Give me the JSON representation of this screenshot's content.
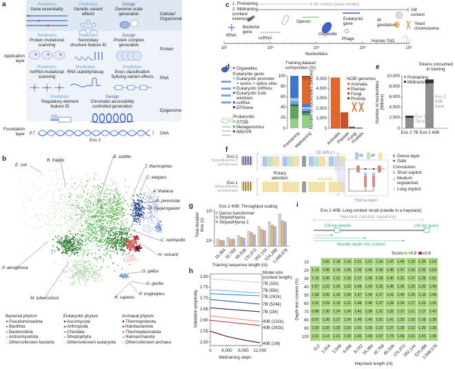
{
  "panel_labels": [
    "a",
    "b",
    "c",
    "d",
    "e",
    "f",
    "g",
    "h",
    "i"
  ],
  "a": {
    "rows": [
      {
        "level": "Cellular/\nOrganismal",
        "cells": [
          {
            "type": "Prediction",
            "title": "Gene essentiality",
            "icon": "gene-knockout"
          },
          {
            "type": "Prediction",
            "title": "Genetic variant\neffects",
            "icon": "people"
          },
          {
            "type": "Design",
            "title": "Genome-scale\ngeneration",
            "icon": "cell-genome"
          }
        ]
      },
      {
        "level": "Protein",
        "cells": [
          {
            "type": "Prediction",
            "title": "Protein mutational\nscanning",
            "icon": "protein-mutation"
          },
          {
            "type": "Prediction",
            "title": "Secondary\nstructure feature ID",
            "icon": "helix-sheet"
          },
          {
            "type": "Design",
            "title": "Protein complex\ngeneration",
            "icon": "protein-complex"
          }
        ]
      },
      {
        "level": "RNA",
        "cells": [
          {
            "type": "Prediction",
            "title": "ncRNA mutational\nscanning",
            "icon": "rna-mutation"
          },
          {
            "type": "Prediction",
            "title": "RNA stability/decay",
            "icon": "rna-hairpin"
          },
          {
            "type": "Prediction",
            "title": "Exon classification\nSplicing variant effects",
            "icon": "exon-splice"
          }
        ]
      },
      {
        "level": "Epigenome",
        "cells": [
          {
            "type": "Prediction",
            "title": "Regulatory element\nfeature ID",
            "icon": "regulatory-element"
          },
          {
            "type": "Design",
            "title": "Chromatin accessibility\ncontrolled generation",
            "icon": "chromatin"
          }
        ]
      }
    ],
    "application_layer": "Application\nlayer",
    "foundation_layer": "Foundation\nlayer",
    "p_open": "p (",
    "p_close": ")",
    "model": "Evo 2",
    "dna": "DNA",
    "colors": {
      "prediction": "#5b9fe0",
      "design": "#4a5cae",
      "background": "#eef3fa"
    }
  },
  "b": {
    "species": [
      "E. coli",
      "B. fragilis",
      "B. subtilis",
      "T. thermophila",
      "C. elegans",
      "A. thaliana",
      "S. cerevisiae",
      "D. melanogaster",
      "C. reinhardtii",
      "H. volcanii",
      "G. gallus",
      "G. gorilla",
      "P. troglodytes",
      "H. sapiens",
      "P. aeruginosa",
      "M. tuberculosis"
    ],
    "legend": [
      {
        "title": "Bacterial phylum",
        "items": [
          {
            "name": "Pseudomonadota",
            "color": "#2e7d32"
          },
          {
            "name": "Bacillota",
            "color": "#4caf50"
          },
          {
            "name": "Bacteroidota",
            "color": "#7cc46a"
          },
          {
            "name": "Actinomycetota",
            "color": "#a8d5a0"
          },
          {
            "name": "Other/unknown bacteria",
            "color": "#d8ecd3"
          }
        ]
      },
      {
        "title": "Eukaryotic phylum",
        "items": [
          {
            "name": "Ascomycota",
            "color": "#1f3e8c"
          },
          {
            "name": "Arthropoda",
            "color": "#3c64c8"
          },
          {
            "name": "Chordata",
            "color": "#7a98d8"
          },
          {
            "name": "Streptophyta",
            "color": "#a8bce8"
          },
          {
            "name": "Other/unknown eukaryota",
            "color": "#dbe3f4"
          }
        ]
      },
      {
        "title": "Archaeal phylum",
        "items": [
          {
            "name": "Thermoproteota",
            "color": "#6b1024"
          },
          {
            "name": "Halobacteriota",
            "color": "#c2283a"
          },
          {
            "name": "Thermoplasmatota",
            "color": "#e05a5a"
          },
          {
            "name": "Nanoarchaeota",
            "color": "#f09a9a"
          },
          {
            "name": "Other/unknown archaea",
            "color": "#f7cfcf"
          }
        ]
      }
    ]
  },
  "c": {
    "pretraining": "1. Pretraining",
    "midtraining": "2. Midtraining\n(context\nextension)",
    "base_context": "8k context (base model)",
    "long_context": "1M\ncontext",
    "xlabel": "Nucleotides",
    "ticks": [
      "10²",
      "10³",
      "10⁴",
      "10⁵",
      "10⁶"
    ],
    "items": [
      "tRNA",
      "Bacterial\ngene",
      "ncRNA",
      "Operon",
      "Organelle",
      "Eukaryotic\ngene",
      "Phage",
      "M.\ngenitalium",
      "Human TAD",
      "Yeast\nchromosome"
    ]
  },
  "d": {
    "legend": {
      "organelles": "Organelles",
      "eukaryotic_header": "Eukaryotic genic",
      "eukaryotic": [
        "Eukaryotic promoter\n+ exons + splice sites",
        "Eukaryotic mRNAs",
        "Eukaryotic 5-kb\nwindows",
        "ncRNA",
        "EPDnew"
      ],
      "prokaryotic_header": "Prokaryotic",
      "prokaryotic": [
        "GTDB",
        "Metagenomics",
        "IMG/VR"
      ],
      "ncbi_header": "NCBI genomes"
    }
  },
  "f": {
    "evo2": "Evo 2",
    "evo2_arch": "StripedHyena 2\narchitecture",
    "evo1": "Evo 1",
    "evo1_arch": "StripedHyena\narchitecture",
    "evo2_pattern": "SE-MR-LI",
    "evo1_pattern": "LI-LI-LI",
    "rotary": "Rotary\nattention",
    "or": "or",
    "hyena_layer": "Hyena layer",
    "legend": {
      "dense": "Dense layer",
      "gate": "Gate",
      "convolution": "Convolution",
      "short": "Short explicit",
      "medium": "Medium\nregularized",
      "long": "Long implicit"
    },
    "colors": {
      "short": "#a9c8ef",
      "medium": "#bfe3c8",
      "long": "#f6e29a",
      "dense": "#d98a8a",
      "attention": "#9a9a9a",
      "evo2": "#8a7fc0",
      "evo1": "#e8b94a"
    }
  },
  "i_diagram": {
    "haystack": "Haystack (random sequence)",
    "needle": "100 bp needle",
    "query": "100 bp query",
    "depth": "Needle depth into context",
    "score_label": "Score:",
    "score_high": ">0.8",
    "score_low": "≤0.8"
  },
  "chart_data": [
    {
      "id": "composition",
      "type": "bar",
      "stacked": true,
      "title": "Training dataset composition (%)",
      "categories": [
        "Pretraining",
        "Midtraining"
      ],
      "ylim": [
        0,
        100
      ],
      "yticks": [
        "0",
        "20",
        "40",
        "60",
        "80",
        "100"
      ],
      "series": [
        {
          "name": "GTDB",
          "values": [
            18,
            24
          ],
          "color": "#93cf84"
        },
        {
          "name": "Metagenomics",
          "values": [
            24,
            4
          ],
          "color": "#5aa65a"
        },
        {
          "name": "IMG/VR",
          "values": [
            2,
            2
          ],
          "color": "#2f6f3a"
        },
        {
          "name": "EPDnew",
          "values": [
            1,
            1
          ],
          "color": "#1e3a78"
        },
        {
          "name": "ncRNA",
          "values": [
            1,
            2
          ],
          "color": "#2f5fb8"
        },
        {
          "name": "Eukaryotic mRNAs",
          "values": [
            6,
            4
          ],
          "color": "#6f9ee0"
        },
        {
          "name": "Eukaryotic promoter + exons + splice sites",
          "values": [
            5,
            3
          ],
          "color": "#a9c6ef"
        },
        {
          "name": "Organelles",
          "values": [
            0.5,
            0.5
          ],
          "color": "#8a8a8a"
        },
        {
          "name": "Eukaryotic 5-kb windows",
          "values": [
            42.5,
            5.5
          ],
          "color": "#3f78c8"
        },
        {
          "name": "Animalia",
          "values": [
            0,
            45
          ],
          "color": "#e0662a"
        },
        {
          "name": "Plantae",
          "values": [
            0,
            7
          ],
          "color": "#c9522a"
        },
        {
          "name": "Fungi",
          "values": [
            0,
            1.5
          ],
          "color": "#a8401f"
        },
        {
          "name": "Protista",
          "values": [
            0,
            0.5
          ],
          "color": "#6e2a14"
        }
      ]
    },
    {
      "id": "ncbi",
      "type": "bar",
      "categories": [
        "Animalia",
        "Plantae",
        "Fungi",
        "Protista"
      ],
      "values": [
        5100,
        1600,
        150,
        50
      ],
      "colors": [
        "#e0662a",
        "#c9522a",
        "#a8401f",
        "#6e2a14"
      ],
      "ylabel": "Number of nucleotides (billions)",
      "ylim": [
        0,
        5300
      ],
      "yticks": [
        "0",
        "1,000",
        "2,000",
        "3,000",
        "4,000",
        "5,000"
      ]
    },
    {
      "id": "tokens",
      "type": "bar",
      "stacked": true,
      "title": "Tokens consumed\nin training",
      "categories": [
        "Evo 2 7B",
        "Evo 2 40B"
      ],
      "series": [
        {
          "name": "Pretraining",
          "values": [
            2000,
            8600
          ],
          "color": "#8e8e8e"
        },
        {
          "name": "Midtraining",
          "values": [
            400,
            700
          ],
          "color": "#2b2b2b"
        }
      ],
      "annotations": [
        "Evo 2\n7B base",
        "Evo 2\n40B\nbase"
      ],
      "ylabel": "Number of nucleotides\n(billions)",
      "ylim": [
        0,
        10000
      ],
      "yticks": [
        "0",
        "2,000",
        "4,000",
        "6,000",
        "8,000",
        "10,000"
      ]
    },
    {
      "id": "throughput",
      "type": "bar",
      "log_y": true,
      "title": "Evo 2 40B: Throughput scaling",
      "categories": [
        "16,384",
        "32,768",
        "65,536",
        "131,072",
        "262,144",
        "524,288",
        "1,048,576"
      ],
      "series": [
        {
          "name": "Dense transformer",
          "values": [
            12,
            14,
            16,
            22,
            32,
            47,
            85
          ],
          "color": "#d4d4d4"
        },
        {
          "name": "StripedHyena",
          "values": [
            11,
            12,
            14,
            20,
            26,
            36,
            50
          ],
          "color": "#e8b96a"
        },
        {
          "name": "StripedHyena 2",
          "values": [
            11,
            12,
            13,
            17,
            23,
            32,
            45
          ],
          "color": "#b7b1e0"
        }
      ],
      "xlabel": "Training sequence length (nt)",
      "ylabel": "Total iteration\ntime (s)",
      "yticks": [
        "10¹",
        "10²"
      ]
    },
    {
      "id": "perplexity",
      "type": "line",
      "x": [
        0,
        4000,
        8000,
        12000
      ],
      "series": [
        {
          "name": "7B (32k)",
          "values": [
            2.79,
            2.784,
            2.778,
            2.772
          ],
          "color": "#b9d3ee"
        },
        {
          "name": "7B (65k)",
          "values": [
            2.74,
            2.735,
            2.729,
            2.724
          ],
          "color": "#7fb0e4"
        },
        {
          "name": "7B (262k)",
          "values": [
            2.722,
            2.718,
            2.715,
            2.712
          ],
          "color": "#3f86cf"
        },
        {
          "name": "7B (524k)",
          "values": [
            2.695,
            2.688,
            2.681,
            2.674
          ],
          "color": "#2d5aa8"
        },
        {
          "name": "7B (1M)",
          "values": [
            2.657,
            2.651,
            2.645,
            2.639
          ],
          "color": "#17305f"
        },
        {
          "name": "40B (131k)",
          "values": [
            2.62,
            2.612,
            2.603,
            2.595
          ],
          "color": "#ee8a72"
        },
        {
          "name": "40B (262k)",
          "values": [
            2.6,
            2.592,
            2.584,
            2.576
          ],
          "color": "#c8303a"
        },
        {
          "name": "40B (1M)",
          "values": [
            2.55,
            2.526,
            2.51,
            2.497
          ],
          "color": "#4a0f1e"
        }
      ],
      "legend_title": "Model size\n(context length)",
      "xlabel": "Midtraining steps",
      "ylabel": "Validation perplexity",
      "xlim": [
        0,
        12000
      ],
      "ylim": [
        2.475,
        2.805
      ],
      "xticks": [
        "0",
        "4,000",
        "8,000",
        "12,000"
      ],
      "yticks": [
        "2.50",
        "2.55",
        "2.60",
        "2.65",
        "2.70",
        "2.75",
        "2.80"
      ]
    },
    {
      "id": "needle-recall",
      "type": "heatmap",
      "title": "Evo 2 40B: Long-context recall (needle in a haystack)",
      "xlabel": "Haystack length (nt)",
      "ylabel": "Depth into context (%)",
      "columns": [
        "512",
        "1,024",
        "2,048",
        "4,096",
        "8,192",
        "16,384",
        "32,768",
        "65,536",
        "131,072",
        "262,144",
        "524,288",
        "1,048,576"
      ],
      "rows": [
        "10",
        "20",
        "30",
        "40",
        "50",
        "60",
        "70",
        "80",
        "90",
        "100"
      ],
      "values": [
        [
          null,
          1.06,
          1.18,
          1.14,
          1.51,
          1.37,
          1.34,
          1.47,
          1.49,
          1.33,
          1.39,
          1.54
        ],
        [
          1.13,
          1.05,
          1.14,
          1.08,
          1.35,
          1.46,
          1.4,
          1.48,
          1.37,
          1.32,
          1.26,
          1.53
        ],
        [
          1.16,
          1.3,
          1.31,
          1.18,
          1.27,
          1.45,
          1.29,
          1.46,
          1.32,
          1.27,
          1.28,
          1.52
        ],
        [
          1.07,
          1.22,
          1.25,
          1.23,
          1.49,
          1.43,
          1.25,
          1.48,
          1.35,
          1.2,
          1.2,
          1.46
        ],
        [
          1.08,
          1.06,
          1.25,
          1.24,
          1.47,
          1.45,
          1.27,
          1.41,
          1.45,
          1.25,
          1.16,
          1.45
        ],
        [
          1.01,
          1.29,
          1.19,
          1.21,
          1.48,
          1.46,
          1.27,
          1.34,
          1.34,
          1.17,
          1.23,
          1.41
        ],
        [
          0.88,
          1.3,
          1.24,
          1.24,
          1.41,
          1.38,
          1.31,
          1.32,
          1.37,
          1.11,
          1.17,
          1.43
        ],
        [
          0.97,
          1.3,
          1.27,
          1.14,
          1.49,
          1.4,
          1.51,
          1.41,
          1.33,
          1.16,
          1.18,
          1.39
        ],
        [
          1.02,
          1.2,
          1.29,
          1.33,
          1.51,
          1.35,
          1.22,
          1.37,
          1.39,
          1.12,
          1.2,
          1.39
        ],
        [
          1.01,
          1.14,
          1.31,
          1.33,
          1.66,
          1.68,
          1.67,
          1.74,
          1.56,
          1.61,
          1.53,
          1.36
        ]
      ],
      "threshold": 0.8,
      "colors": {
        "above": "#a9d57f",
        "below": "#9c2b6b"
      }
    }
  ]
}
